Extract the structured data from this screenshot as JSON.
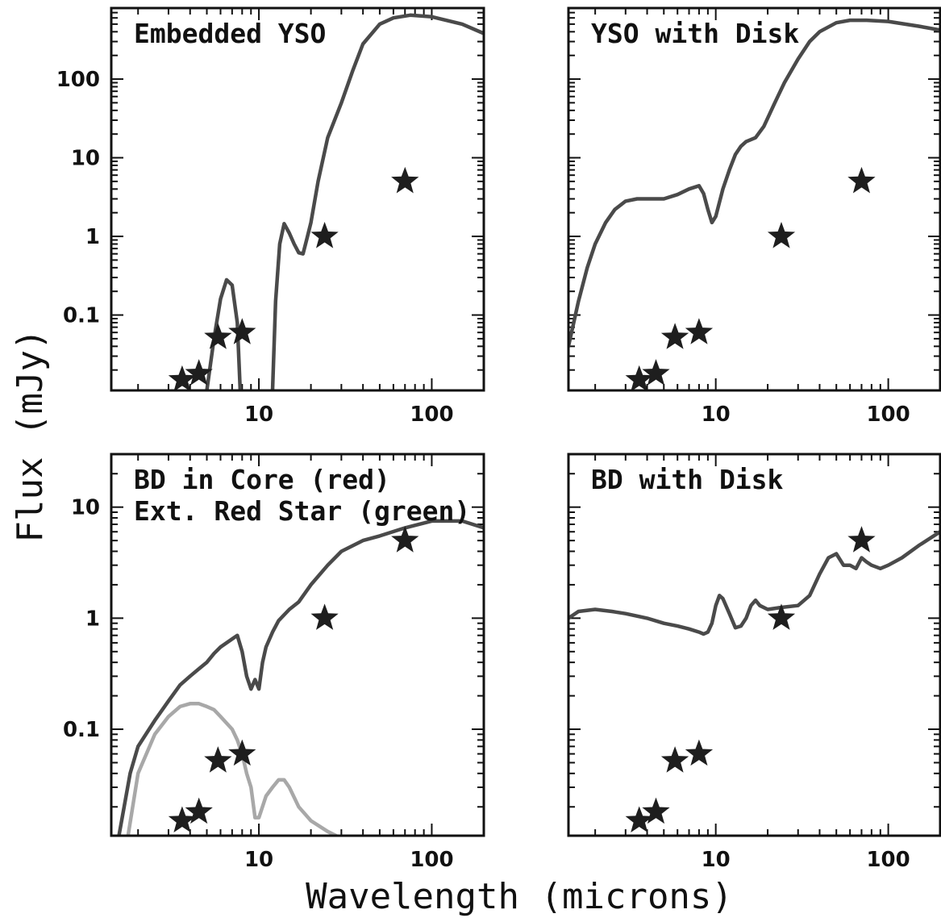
{
  "figure": {
    "xlabel": "Wavelength (microns)",
    "ylabel": "Flux (mJy)"
  },
  "chart_data": [
    {
      "type": "line",
      "title": "Embedded YSO",
      "x_scale": "log",
      "y_scale": "log",
      "xlim": [
        1.4,
        200
      ],
      "ylim": [
        0.011,
        800
      ],
      "x_ticks": [
        10,
        100
      ],
      "x_tick_labels": [
        "10",
        "100"
      ],
      "y_ticks": [
        0.1,
        1,
        10,
        100
      ],
      "y_tick_labels": [
        "0.1",
        "1",
        "10",
        "100"
      ],
      "observed": {
        "x": [
          3.6,
          4.5,
          5.8,
          8.0,
          24,
          70
        ],
        "y": [
          0.015,
          0.018,
          0.052,
          0.06,
          1.0,
          5.0
        ]
      },
      "series": [
        {
          "color": "#4a4a4a",
          "segments": [
            {
              "x": [
                5.0,
                5.5,
                6.0,
                6.5,
                7.0,
                7.5,
                7.8
              ],
              "y": [
                0.011,
                0.05,
                0.16,
                0.28,
                0.24,
                0.08,
                0.011
              ]
            },
            {
              "x": [
                12.0,
                12.5,
                13.2,
                14.0,
                15.0,
                16.0,
                17.0,
                18.0,
                19.0,
                20.0,
                22.0,
                25.0,
                30.0,
                35.0,
                40.0,
                50.0,
                60.0,
                75.0,
                100.0,
                150.0,
                200.0
              ],
              "y": [
                0.011,
                0.15,
                0.8,
                1.45,
                1.1,
                0.8,
                0.62,
                0.6,
                0.95,
                1.5,
                5.0,
                18.0,
                50.0,
                130.0,
                280.0,
                500.0,
                600.0,
                650.0,
                620.0,
                500.0,
                380.0
              ]
            }
          ]
        }
      ]
    },
    {
      "type": "line",
      "title": "YSO with Disk",
      "x_scale": "log",
      "y_scale": "log",
      "xlim": [
        1.4,
        200
      ],
      "ylim": [
        0.011,
        800
      ],
      "x_ticks": [
        10,
        100
      ],
      "x_tick_labels": [
        "10",
        "100"
      ],
      "y_ticks": [
        0.1,
        1,
        10,
        100
      ],
      "y_tick_labels": [],
      "observed": {
        "x": [
          3.6,
          4.5,
          5.8,
          8.0,
          24,
          70
        ],
        "y": [
          0.015,
          0.018,
          0.052,
          0.06,
          1.0,
          5.0
        ]
      },
      "series": [
        {
          "color": "#4a4a4a",
          "segments": [
            {
              "x": [
                1.4,
                1.6,
                1.8,
                2.0,
                2.3,
                2.6,
                3.0,
                3.5,
                4.0,
                5.0,
                6.0,
                7.0,
                8.0,
                8.5,
                9.0,
                9.5,
                10.0,
                11.0,
                12.0,
                13.0,
                14.0,
                15.0,
                17.0,
                19.0,
                22.0,
                25.0,
                30.0,
                35.0,
                40.0,
                50.0,
                60.0,
                75.0,
                100.0,
                150.0,
                200.0
              ],
              "y": [
                0.04,
                0.15,
                0.4,
                0.8,
                1.5,
                2.2,
                2.8,
                3.0,
                3.0,
                3.0,
                3.4,
                4.0,
                4.4,
                3.5,
                2.2,
                1.5,
                1.8,
                4.0,
                7.0,
                11.0,
                14.0,
                16.0,
                18.0,
                25.0,
                50.0,
                90.0,
                180.0,
                300.0,
                400.0,
                520.0,
                560.0,
                560.0,
                540.0,
                470.0,
                420.0
              ]
            }
          ]
        }
      ]
    },
    {
      "type": "line",
      "title": "BD in Core (red)",
      "subtitle": "Ext. Red Star (green)",
      "x_scale": "log",
      "y_scale": "log",
      "xlim": [
        1.4,
        200
      ],
      "ylim": [
        0.011,
        30
      ],
      "x_ticks": [
        10,
        100
      ],
      "x_tick_labels": [
        "10",
        "100"
      ],
      "y_ticks": [
        0.1,
        1,
        10
      ],
      "y_tick_labels": [
        "0.1",
        "1",
        "10"
      ],
      "observed": {
        "x": [
          3.6,
          4.5,
          5.8,
          8.0,
          24,
          70
        ],
        "y": [
          0.015,
          0.018,
          0.052,
          0.06,
          1.0,
          5.0
        ]
      },
      "series": [
        {
          "color": "#4a4a4a",
          "segments": [
            {
              "x": [
                1.55,
                1.8,
                2.0,
                2.5,
                3.0,
                3.5,
                4.0,
                4.5,
                5.0,
                5.5,
                6.0,
                7.0,
                7.5,
                8.0,
                8.5,
                9.0,
                9.5,
                10.0,
                10.5,
                11.0,
                12.0,
                13.0,
                15.0,
                17.0,
                20.0,
                25.0,
                30.0,
                40.0,
                50.0,
                70.0,
                100.0,
                150.0,
                200.0
              ],
              "y": [
                0.011,
                0.04,
                0.07,
                0.12,
                0.18,
                0.25,
                0.3,
                0.35,
                0.4,
                0.48,
                0.55,
                0.65,
                0.7,
                0.5,
                0.3,
                0.23,
                0.28,
                0.23,
                0.4,
                0.55,
                0.75,
                0.95,
                1.2,
                1.4,
                2.0,
                3.0,
                4.0,
                5.0,
                5.5,
                6.5,
                7.5,
                7.5,
                6.5
              ]
            }
          ]
        },
        {
          "color": "#a8a8a8",
          "segments": [
            {
              "x": [
                1.75,
                2.0,
                2.5,
                3.0,
                3.5,
                4.0,
                4.5,
                5.0,
                5.5,
                6.0,
                7.0,
                7.5,
                8.0,
                8.5,
                9.0,
                9.5,
                10.0,
                11.0,
                12.0,
                13.0,
                14.0,
                15.0,
                17.0,
                20.0,
                25.0,
                28.0
              ],
              "y": [
                0.011,
                0.04,
                0.09,
                0.13,
                0.16,
                0.17,
                0.17,
                0.16,
                0.15,
                0.13,
                0.1,
                0.08,
                0.06,
                0.04,
                0.03,
                0.016,
                0.016,
                0.025,
                0.03,
                0.035,
                0.035,
                0.03,
                0.02,
                0.015,
                0.012,
                0.011
              ]
            }
          ]
        }
      ]
    },
    {
      "type": "line",
      "title": "BD with Disk",
      "x_scale": "log",
      "y_scale": "log",
      "xlim": [
        1.4,
        200
      ],
      "ylim": [
        0.011,
        30
      ],
      "x_ticks": [
        10,
        100
      ],
      "x_tick_labels": [
        "10",
        "100"
      ],
      "y_ticks": [
        0.1,
        1,
        10
      ],
      "y_tick_labels": [],
      "observed": {
        "x": [
          3.6,
          4.5,
          5.8,
          8.0,
          24,
          70
        ],
        "y": [
          0.015,
          0.018,
          0.052,
          0.06,
          1.0,
          5.0
        ]
      },
      "series": [
        {
          "color": "#4a4a4a",
          "segments": [
            {
              "x": [
                1.4,
                1.6,
                2.0,
                2.5,
                3.0,
                4.0,
                5.0,
                6.0,
                7.0,
                8.0,
                8.5,
                9.0,
                9.5,
                10.0,
                10.5,
                11.0,
                12.0,
                13.0,
                14.0,
                15.0,
                16.0,
                17.0,
                18.0,
                20.0,
                24.0,
                30.0,
                35.0,
                40.0,
                45.0,
                50.0,
                55.0,
                60.0,
                65.0,
                70.0,
                75.0,
                80.0,
                90.0,
                100.0,
                120.0,
                150.0,
                200.0
              ],
              "y": [
                1.0,
                1.15,
                1.2,
                1.15,
                1.1,
                1.0,
                0.9,
                0.85,
                0.8,
                0.75,
                0.72,
                0.75,
                0.9,
                1.3,
                1.6,
                1.5,
                1.1,
                0.82,
                0.85,
                1.0,
                1.3,
                1.45,
                1.3,
                1.2,
                1.25,
                1.3,
                1.6,
                2.5,
                3.5,
                3.8,
                3.0,
                3.0,
                2.8,
                3.5,
                3.2,
                3.0,
                2.8,
                3.0,
                3.5,
                4.5,
                6.0
              ]
            }
          ]
        }
      ]
    }
  ]
}
